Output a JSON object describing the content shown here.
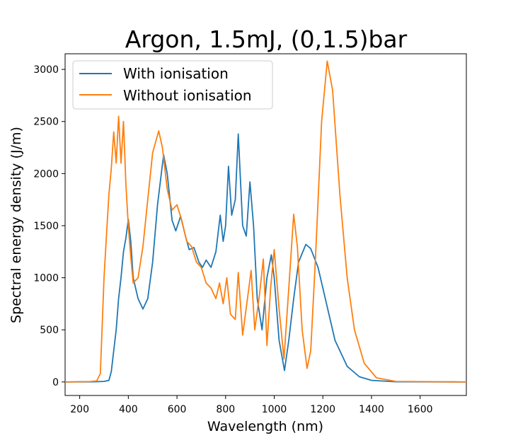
{
  "chart_data": {
    "type": "line",
    "title": "Argon, 1.5mJ, (0,1.5)bar",
    "xlabel": "Wavelength (nm)",
    "ylabel": "Spectral energy density (J/m)",
    "xlim": [
      140,
      1790
    ],
    "ylim": [
      -130,
      3150
    ],
    "xticks": [
      200,
      400,
      600,
      800,
      1000,
      1200,
      1400,
      1600
    ],
    "yticks": [
      0,
      500,
      1000,
      1500,
      2000,
      2500,
      3000
    ],
    "grid": false,
    "legend_position": "upper-left",
    "series": [
      {
        "name": "With ionisation",
        "color": "#1f77b4",
        "points": [
          [
            140,
            0
          ],
          [
            250,
            1
          ],
          [
            300,
            5
          ],
          [
            320,
            15
          ],
          [
            330,
            100
          ],
          [
            340,
            300
          ],
          [
            350,
            500
          ],
          [
            360,
            800
          ],
          [
            370,
            1000
          ],
          [
            380,
            1250
          ],
          [
            390,
            1380
          ],
          [
            400,
            1560
          ],
          [
            410,
            1350
          ],
          [
            420,
            1000
          ],
          [
            440,
            800
          ],
          [
            460,
            700
          ],
          [
            480,
            800
          ],
          [
            500,
            1150
          ],
          [
            520,
            1700
          ],
          [
            545,
            2180
          ],
          [
            560,
            2000
          ],
          [
            580,
            1550
          ],
          [
            595,
            1450
          ],
          [
            615,
            1590
          ],
          [
            635,
            1400
          ],
          [
            650,
            1270
          ],
          [
            670,
            1290
          ],
          [
            690,
            1150
          ],
          [
            705,
            1100
          ],
          [
            720,
            1170
          ],
          [
            740,
            1100
          ],
          [
            760,
            1250
          ],
          [
            778,
            1600
          ],
          [
            790,
            1350
          ],
          [
            800,
            1500
          ],
          [
            812,
            2070
          ],
          [
            825,
            1600
          ],
          [
            840,
            1750
          ],
          [
            852,
            2380
          ],
          [
            870,
            1500
          ],
          [
            885,
            1400
          ],
          [
            900,
            1920
          ],
          [
            915,
            1500
          ],
          [
            930,
            800
          ],
          [
            950,
            500
          ],
          [
            970,
            1000
          ],
          [
            988,
            1220
          ],
          [
            1000,
            1000
          ],
          [
            1020,
            400
          ],
          [
            1042,
            110
          ],
          [
            1060,
            400
          ],
          [
            1080,
            800
          ],
          [
            1100,
            1150
          ],
          [
            1130,
            1320
          ],
          [
            1150,
            1280
          ],
          [
            1180,
            1100
          ],
          [
            1210,
            800
          ],
          [
            1250,
            400
          ],
          [
            1300,
            150
          ],
          [
            1350,
            50
          ],
          [
            1400,
            15
          ],
          [
            1500,
            2
          ],
          [
            1790,
            0
          ]
        ]
      },
      {
        "name": "Without ionisation",
        "color": "#ff7f0e",
        "points": [
          [
            140,
            0
          ],
          [
            240,
            3
          ],
          [
            270,
            10
          ],
          [
            285,
            80
          ],
          [
            300,
            1000
          ],
          [
            310,
            1400
          ],
          [
            320,
            1800
          ],
          [
            330,
            2050
          ],
          [
            340,
            2400
          ],
          [
            350,
            2100
          ],
          [
            360,
            2550
          ],
          [
            370,
            2100
          ],
          [
            380,
            2500
          ],
          [
            390,
            1900
          ],
          [
            400,
            1500
          ],
          [
            410,
            1200
          ],
          [
            420,
            950
          ],
          [
            440,
            1000
          ],
          [
            460,
            1300
          ],
          [
            480,
            1750
          ],
          [
            500,
            2200
          ],
          [
            525,
            2410
          ],
          [
            540,
            2250
          ],
          [
            560,
            1850
          ],
          [
            580,
            1650
          ],
          [
            600,
            1700
          ],
          [
            620,
            1550
          ],
          [
            640,
            1350
          ],
          [
            660,
            1300
          ],
          [
            680,
            1150
          ],
          [
            700,
            1100
          ],
          [
            720,
            950
          ],
          [
            740,
            900
          ],
          [
            760,
            800
          ],
          [
            775,
            950
          ],
          [
            790,
            750
          ],
          [
            805,
            1000
          ],
          [
            820,
            650
          ],
          [
            840,
            600
          ],
          [
            852,
            1050
          ],
          [
            870,
            450
          ],
          [
            890,
            800
          ],
          [
            905,
            1070
          ],
          [
            920,
            500
          ],
          [
            940,
            850
          ],
          [
            955,
            1180
          ],
          [
            970,
            350
          ],
          [
            985,
            900
          ],
          [
            1000,
            1270
          ],
          [
            1020,
            700
          ],
          [
            1040,
            220
          ],
          [
            1060,
            900
          ],
          [
            1080,
            1610
          ],
          [
            1095,
            1300
          ],
          [
            1115,
            500
          ],
          [
            1135,
            130
          ],
          [
            1150,
            300
          ],
          [
            1170,
            1200
          ],
          [
            1195,
            2500
          ],
          [
            1218,
            3080
          ],
          [
            1240,
            2800
          ],
          [
            1270,
            1800
          ],
          [
            1300,
            1000
          ],
          [
            1330,
            500
          ],
          [
            1370,
            180
          ],
          [
            1420,
            40
          ],
          [
            1500,
            5
          ],
          [
            1790,
            0
          ]
        ]
      }
    ]
  }
}
